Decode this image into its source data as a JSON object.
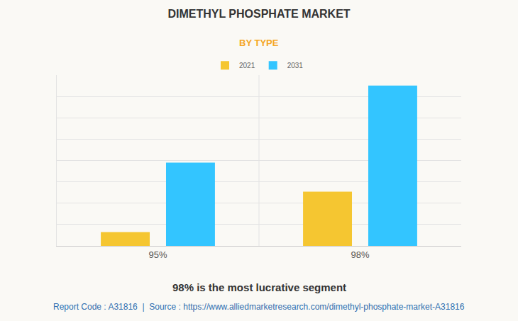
{
  "chart_data": {
    "type": "bar",
    "title": "DIMETHYL PHOSPHATE MARKET",
    "subtitle": "BY TYPE",
    "categories": [
      "95%",
      "98%"
    ],
    "series": [
      {
        "name": "2021",
        "color": "#f5c631",
        "values": [
          0.65,
          2.54
        ]
      },
      {
        "name": "2031",
        "color": "#33c5ff",
        "values": [
          3.9,
          7.51
        ]
      }
    ],
    "ylim": [
      0,
      8
    ],
    "yticks": [
      0,
      1,
      2,
      3,
      4,
      5,
      6,
      7,
      8
    ],
    "grid": true,
    "legend": "top",
    "tick_labels": "x",
    "caption": "98% is the most lucrative segment",
    "source": "Report Code : A31816  |  Source : https://www.alliedmarketresearch.com/dimethyl-phosphate-market-A31816"
  }
}
